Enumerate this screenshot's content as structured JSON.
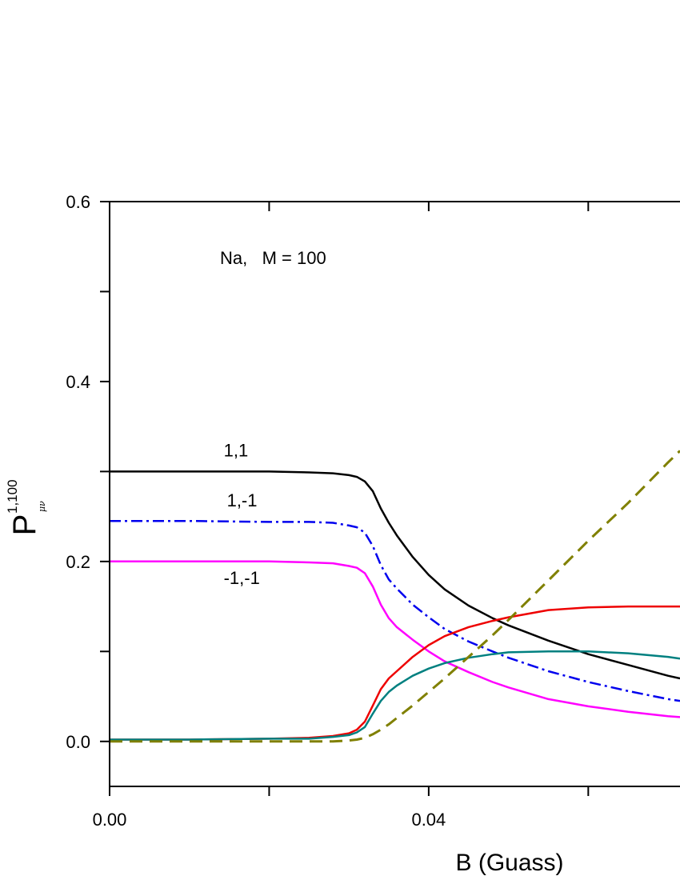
{
  "chart_data": {
    "type": "line",
    "title": "",
    "xlabel": "B (Guass)",
    "ylabel": {
      "main": "P",
      "superscript": "1,100",
      "subscript": "μν"
    },
    "annotation": "Na,   M = 100",
    "xlim": [
      0,
      0.0715
    ],
    "ylim": [
      -0.05,
      0.6
    ],
    "x_ticks": [
      0,
      0.02,
      0.04,
      0.06
    ],
    "x_tick_labels": [
      "0.00",
      "",
      "0.04",
      ""
    ],
    "y_ticks": [
      0,
      0.1,
      0.2,
      0.3,
      0.4,
      0.5,
      0.6
    ],
    "y_tick_labels": [
      "0.0",
      "",
      "0.2",
      "",
      "0.4",
      "",
      "0.6"
    ],
    "grid": false,
    "legend": "none",
    "series": [
      {
        "name": "1,1",
        "color": "#000000",
        "dash": "solid",
        "x": [
          0,
          0.01,
          0.02,
          0.025,
          0.028,
          0.03,
          0.031,
          0.032,
          0.033,
          0.034,
          0.035,
          0.036,
          0.038,
          0.04,
          0.042,
          0.045,
          0.048,
          0.05,
          0.055,
          0.06,
          0.065,
          0.07,
          0.0715
        ],
        "y": [
          0.3,
          0.3,
          0.3,
          0.299,
          0.298,
          0.296,
          0.294,
          0.289,
          0.278,
          0.259,
          0.243,
          0.229,
          0.205,
          0.185,
          0.169,
          0.151,
          0.137,
          0.129,
          0.112,
          0.097,
          0.085,
          0.073,
          0.07
        ]
      },
      {
        "name": "1,-1",
        "color": "#0000ee",
        "dash": "dashdot",
        "x": [
          0,
          0.01,
          0.02,
          0.025,
          0.028,
          0.03,
          0.031,
          0.032,
          0.033,
          0.034,
          0.035,
          0.036,
          0.038,
          0.04,
          0.042,
          0.045,
          0.048,
          0.05,
          0.055,
          0.06,
          0.065,
          0.07,
          0.0715
        ],
        "y": [
          0.245,
          0.245,
          0.244,
          0.244,
          0.243,
          0.24,
          0.238,
          0.232,
          0.217,
          0.196,
          0.18,
          0.17,
          0.152,
          0.138,
          0.125,
          0.111,
          0.1,
          0.093,
          0.078,
          0.066,
          0.056,
          0.047,
          0.045
        ]
      },
      {
        "name": "-1,-1",
        "color": "#ff00ff",
        "dash": "solid",
        "x": [
          0,
          0.01,
          0.02,
          0.025,
          0.028,
          0.03,
          0.031,
          0.032,
          0.033,
          0.034,
          0.035,
          0.036,
          0.038,
          0.04,
          0.042,
          0.045,
          0.048,
          0.05,
          0.055,
          0.06,
          0.065,
          0.07,
          0.0715
        ],
        "y": [
          0.2,
          0.2,
          0.2,
          0.199,
          0.198,
          0.195,
          0.193,
          0.187,
          0.172,
          0.152,
          0.137,
          0.127,
          0.113,
          0.1,
          0.089,
          0.077,
          0.066,
          0.06,
          0.047,
          0.039,
          0.033,
          0.028,
          0.027
        ]
      },
      {
        "name": "",
        "color": "#ee0000",
        "dash": "solid",
        "x": [
          0,
          0.01,
          0.02,
          0.025,
          0.028,
          0.03,
          0.031,
          0.032,
          0.033,
          0.034,
          0.035,
          0.036,
          0.038,
          0.04,
          0.042,
          0.045,
          0.048,
          0.05,
          0.055,
          0.06,
          0.065,
          0.07,
          0.0715
        ],
        "y": [
          0.002,
          0.002,
          0.003,
          0.004,
          0.006,
          0.009,
          0.013,
          0.022,
          0.04,
          0.058,
          0.07,
          0.078,
          0.094,
          0.107,
          0.117,
          0.127,
          0.134,
          0.138,
          0.146,
          0.149,
          0.15,
          0.15,
          0.15
        ]
      },
      {
        "name": "",
        "color": "#008080",
        "dash": "solid",
        "x": [
          0,
          0.01,
          0.02,
          0.025,
          0.028,
          0.03,
          0.031,
          0.032,
          0.033,
          0.034,
          0.035,
          0.036,
          0.038,
          0.04,
          0.042,
          0.045,
          0.048,
          0.05,
          0.055,
          0.06,
          0.065,
          0.07,
          0.0715
        ],
        "y": [
          0.002,
          0.002,
          0.003,
          0.003,
          0.005,
          0.007,
          0.01,
          0.016,
          0.031,
          0.045,
          0.055,
          0.062,
          0.073,
          0.081,
          0.087,
          0.093,
          0.097,
          0.099,
          0.1,
          0.1,
          0.098,
          0.094,
          0.092
        ]
      },
      {
        "name": "",
        "color": "#808000",
        "dash": "dashed",
        "x": [
          0,
          0.01,
          0.02,
          0.025,
          0.028,
          0.03,
          0.031,
          0.032,
          0.033,
          0.034,
          0.035,
          0.036,
          0.038,
          0.04,
          0.042,
          0.045,
          0.048,
          0.05,
          0.055,
          0.06,
          0.065,
          0.07,
          0.0715
        ],
        "y": [
          0,
          0,
          0,
          0,
          0,
          0.001,
          0.002,
          0.004,
          0.008,
          0.013,
          0.019,
          0.026,
          0.04,
          0.055,
          0.07,
          0.094,
          0.118,
          0.135,
          0.179,
          0.223,
          0.265,
          0.31,
          0.323
        ]
      }
    ],
    "curve_labels": [
      {
        "text": "1,1",
        "x": 0.0143,
        "y": 0.317
      },
      {
        "text": "1,-1",
        "x": 0.0147,
        "y": 0.261
      },
      {
        "text": "-1,-1",
        "x": 0.0143,
        "y": 0.175
      }
    ]
  }
}
